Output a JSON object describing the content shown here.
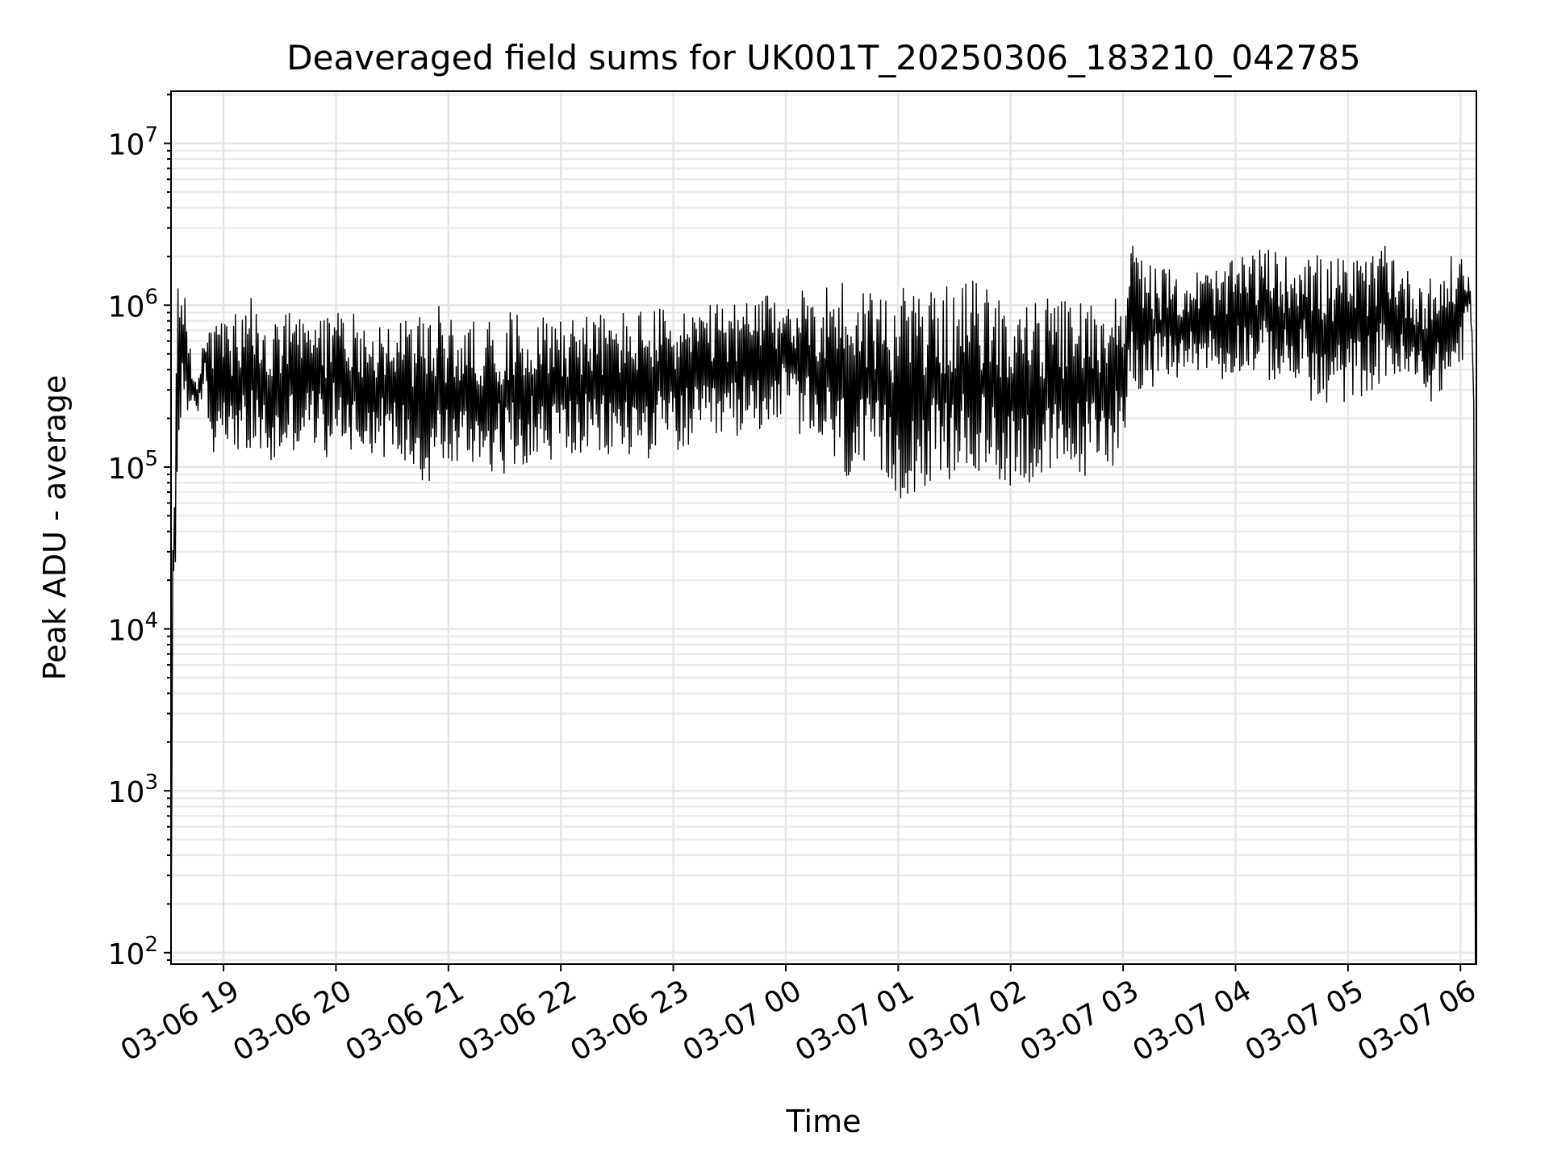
{
  "chart_data": {
    "type": "line",
    "title": "Deaveraged field sums for UK001T_20250306_183210_042785",
    "xlabel": "Time",
    "ylabel": "Peak ADU - average",
    "yscale": "log",
    "ylim": [
      85,
      21000000
    ],
    "xlim": [
      "2025-03-06 18:32:00",
      "2025-03-07 06:08:30"
    ],
    "grid": true,
    "line_color": "#000000",
    "x_ticks": [
      {
        "label": "03-06 19",
        "value": "2025-03-06 19:00"
      },
      {
        "label": "03-06 20",
        "value": "2025-03-06 20:00"
      },
      {
        "label": "03-06 21",
        "value": "2025-03-06 21:00"
      },
      {
        "label": "03-06 22",
        "value": "2025-03-06 22:00"
      },
      {
        "label": "03-06 23",
        "value": "2025-03-06 23:00"
      },
      {
        "label": "03-07 00",
        "value": "2025-03-07 00:00"
      },
      {
        "label": "03-07 01",
        "value": "2025-03-07 01:00"
      },
      {
        "label": "03-07 02",
        "value": "2025-03-07 02:00"
      },
      {
        "label": "03-07 03",
        "value": "2025-03-07 03:00"
      },
      {
        "label": "03-07 04",
        "value": "2025-03-07 04:00"
      },
      {
        "label": "03-07 05",
        "value": "2025-03-07 05:00"
      },
      {
        "label": "03-07 06",
        "value": "2025-03-07 06:00"
      }
    ],
    "y_ticks": [
      {
        "base": "10",
        "exp": "2",
        "value": 100
      },
      {
        "base": "10",
        "exp": "3",
        "value": 1000
      },
      {
        "base": "10",
        "exp": "4",
        "value": 10000
      },
      {
        "base": "10",
        "exp": "5",
        "value": 100000
      },
      {
        "base": "10",
        "exp": "6",
        "value": 1000000
      },
      {
        "base": "10",
        "exp": "7",
        "value": 10000000
      }
    ],
    "series": [
      {
        "x": [
          "2025-03-06 18:32",
          "2025-03-06 18:33",
          "2025-03-06 18:34",
          "2025-03-06 18:35",
          "2025-03-06 18:36",
          "2025-03-06 18:38",
          "2025-03-06 18:40",
          "2025-03-06 18:42",
          "2025-03-06 18:44",
          "2025-03-06 18:46",
          "2025-03-06 18:48",
          "2025-03-06 18:50",
          "2025-03-06 18:52",
          "2025-03-06 18:54",
          "2025-03-06 18:56",
          "2025-03-06 18:58",
          "2025-03-06 19:00",
          "2025-03-06 19:03",
          "2025-03-06 19:06",
          "2025-03-06 19:09",
          "2025-03-06 19:12",
          "2025-03-06 19:15",
          "2025-03-06 19:20",
          "2025-03-06 19:25",
          "2025-03-06 19:30",
          "2025-03-06 19:35",
          "2025-03-06 19:40",
          "2025-03-06 19:45",
          "2025-03-06 19:50",
          "2025-03-06 19:55",
          "2025-03-06 20:00",
          "2025-03-06 20:10",
          "2025-03-06 20:20",
          "2025-03-06 20:30",
          "2025-03-06 20:40",
          "2025-03-06 20:50",
          "2025-03-06 20:55",
          "2025-03-06 21:00",
          "2025-03-06 21:15",
          "2025-03-06 21:30",
          "2025-03-06 21:45",
          "2025-03-06 21:50",
          "2025-03-06 22:00",
          "2025-03-06 22:20",
          "2025-03-06 22:40",
          "2025-03-06 23:00",
          "2025-03-06 23:20",
          "2025-03-06 23:40",
          "2025-03-07 00:00",
          "2025-03-07 00:15",
          "2025-03-07 00:25",
          "2025-03-07 00:30",
          "2025-03-07 00:45",
          "2025-03-07 00:58",
          "2025-03-07 01:10",
          "2025-03-07 01:30",
          "2025-03-07 01:40",
          "2025-03-07 01:50",
          "2025-03-07 02:05",
          "2025-03-07 02:20",
          "2025-03-07 02:30",
          "2025-03-07 02:45",
          "2025-03-07 02:55",
          "2025-03-07 03:00",
          "2025-03-07 03:05",
          "2025-03-07 03:15",
          "2025-03-07 03:30",
          "2025-03-07 03:45",
          "2025-03-07 03:55",
          "2025-03-07 04:00",
          "2025-03-07 04:15",
          "2025-03-07 04:30",
          "2025-03-07 04:37",
          "2025-03-07 04:45",
          "2025-03-07 05:00",
          "2025-03-07 05:15",
          "2025-03-07 05:20",
          "2025-03-07 05:30",
          "2025-03-07 05:45",
          "2025-03-07 05:55",
          "2025-03-07 06:00",
          "2025-03-07 06:02",
          "2025-03-07 06:05",
          "2025-03-07 06:07",
          "2025-03-07 06:08"
        ],
        "lo": [
          85,
          30000,
          5000,
          60000,
          100000,
          200000,
          250000,
          180000,
          200000,
          200000,
          250000,
          300000,
          150000,
          120000,
          100000,
          150000,
          200000,
          100000,
          130000,
          120000,
          110000,
          100000,
          120000,
          90000,
          100000,
          130000,
          120000,
          150000,
          130000,
          110000,
          150000,
          120000,
          120000,
          110000,
          100000,
          70000,
          100000,
          90000,
          100000,
          90000,
          110000,
          100000,
          110000,
          110000,
          110000,
          120000,
          130000,
          160000,
          200000,
          120000,
          100000,
          80000,
          70000,
          60000,
          70000,
          80000,
          85000,
          80000,
          75000,
          75000,
          80000,
          90000,
          100000,
          150000,
          300000,
          300000,
          350000,
          400000,
          300000,
          400000,
          350000,
          300000,
          300000,
          200000,
          250000,
          300000,
          350000,
          300000,
          250000,
          300000,
          400000,
          500000,
          1000000,
          300000,
          85
        ],
        "hi": [
          85,
          55000,
          150000,
          900000,
          1500000,
          1800000,
          1400000,
          700000,
          400000,
          300000,
          500000,
          800000,
          1000000,
          900000,
          800000,
          800000,
          900000,
          700000,
          900000,
          800000,
          900000,
          1200000,
          800000,
          800000,
          850000,
          900000,
          900000,
          800000,
          900000,
          900000,
          1000000,
          900000,
          800000,
          850000,
          800000,
          900000,
          1000000,
          850000,
          800000,
          900000,
          950000,
          900000,
          950000,
          900000,
          950000,
          1000000,
          1000000,
          1100000,
          1200000,
          1300000,
          1500000,
          1500000,
          1400000,
          1300000,
          1300000,
          1300000,
          1500000,
          1200000,
          1100000,
          1100000,
          1100000,
          1100000,
          1200000,
          1500000,
          2500000,
          1800000,
          1600000,
          1700000,
          1700000,
          2000000,
          2300000,
          2000000,
          3000000,
          2000000,
          2000000,
          2000000,
          3000000,
          1700000,
          1500000,
          2000000,
          2200000,
          2000000,
          1500000,
          500000,
          85
        ]
      }
    ]
  }
}
